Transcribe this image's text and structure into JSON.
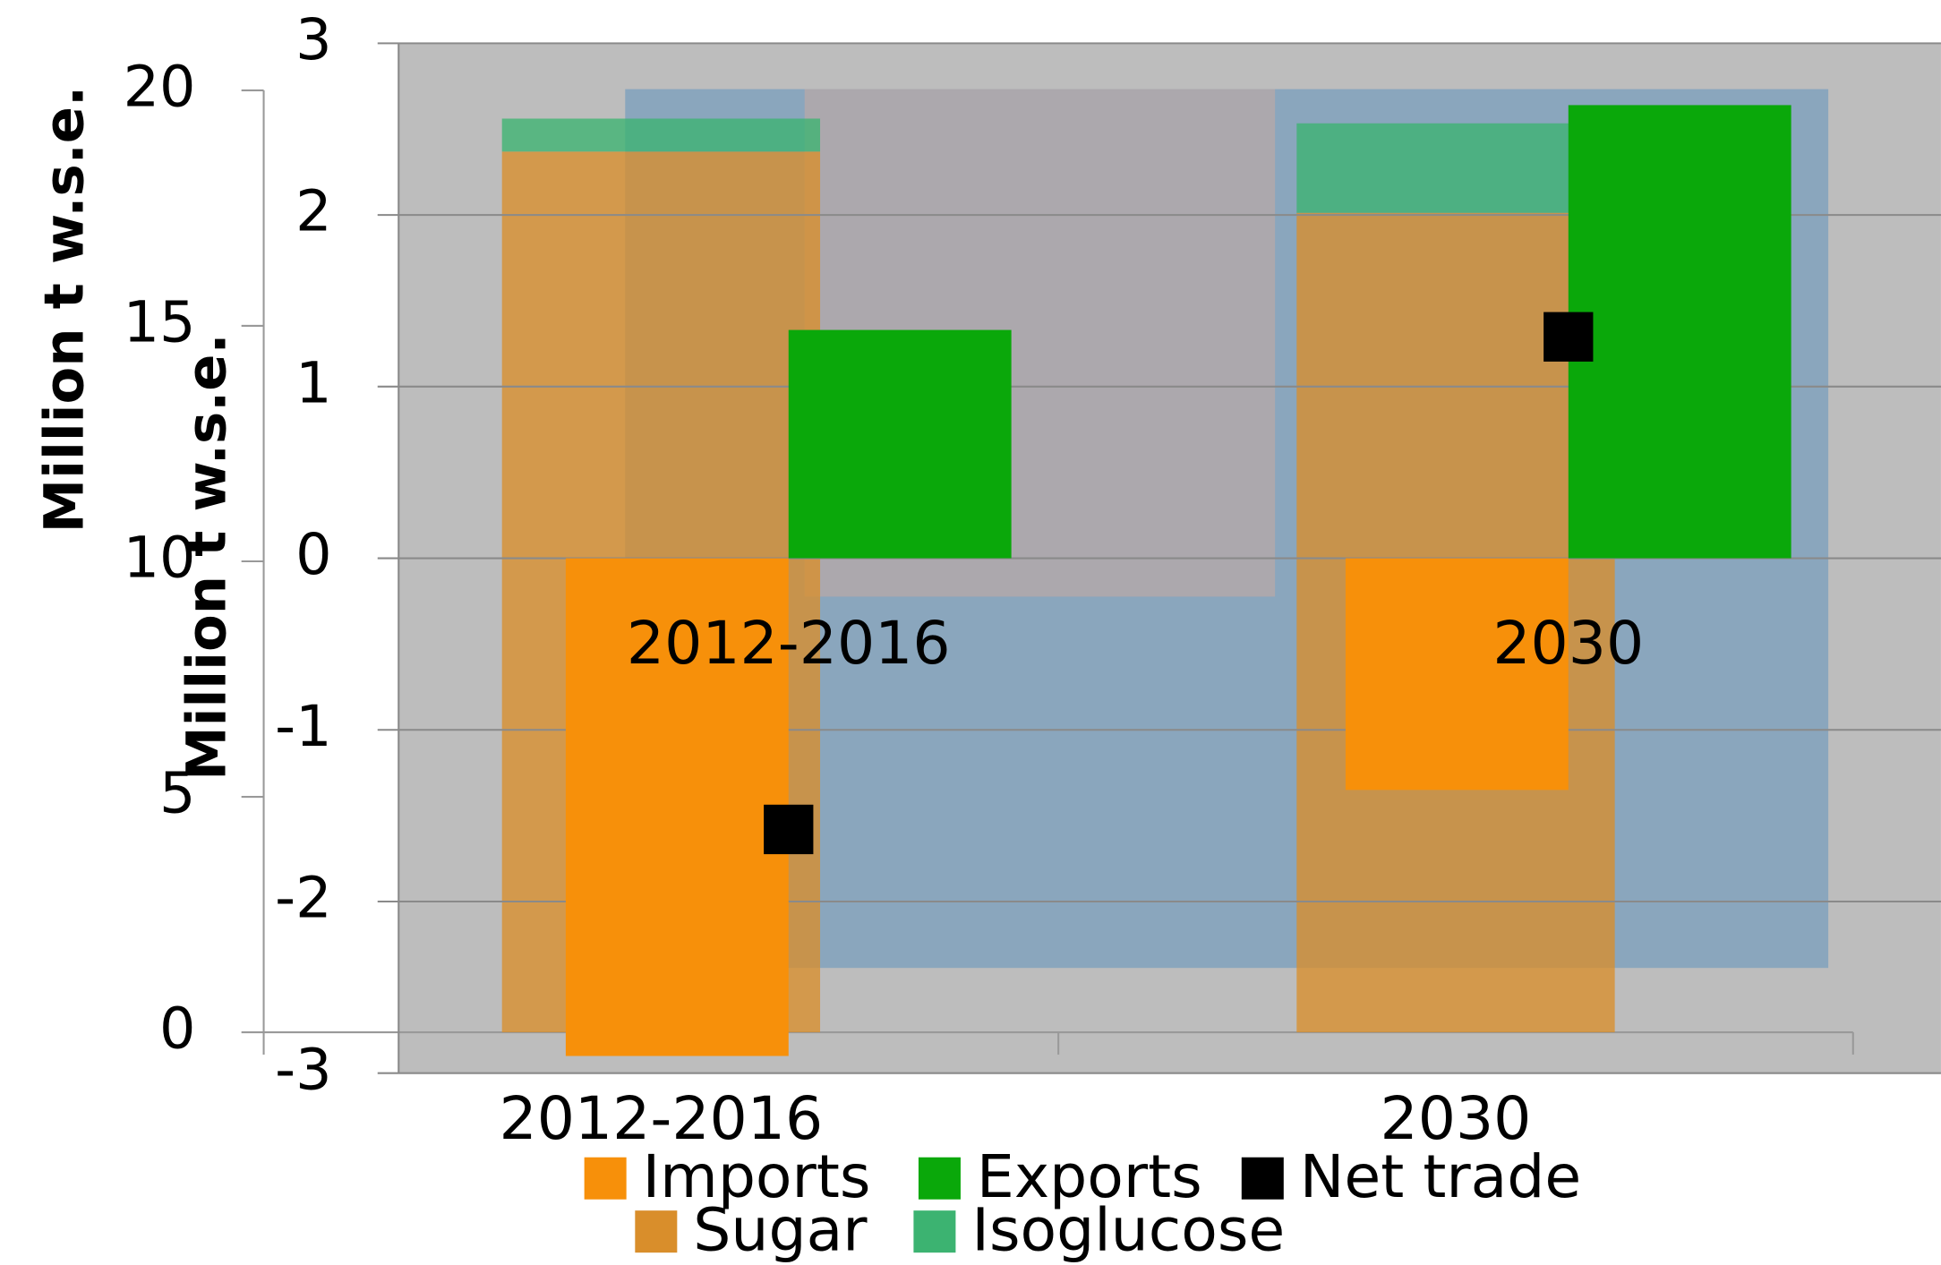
{
  "chart_data": [
    {
      "type": "bar",
      "stacked": true,
      "ylabel": "Million t w.s.e.",
      "categories": [
        "2012-2016",
        "2030"
      ],
      "series": [
        {
          "name": "Sugar",
          "color": "#d98e2b",
          "values": [
            18.7,
            17.4
          ]
        },
        {
          "name": "Isoglucose",
          "color": "#3cb371",
          "values": [
            0.7,
            1.9
          ]
        }
      ],
      "ylim": [
        0,
        20
      ],
      "yticks": [
        0,
        5,
        10,
        15,
        20
      ]
    },
    {
      "type": "bar",
      "stacked": false,
      "ylabel": "Million t w.s.e.",
      "categories": [
        "2012-2016",
        "2030"
      ],
      "series": [
        {
          "name": "Imports",
          "color": "#f7900a",
          "values": [
            -2.9,
            -1.35
          ]
        },
        {
          "name": "Exports",
          "color": "#0aa80a",
          "values": [
            1.33,
            2.64
          ]
        },
        {
          "name": "Net trade",
          "color": "#000000",
          "type": "marker",
          "values": [
            -1.58,
            1.29
          ]
        }
      ],
      "ylim": [
        -3,
        3
      ],
      "yticks": [
        -3,
        -2,
        -1,
        0,
        1,
        2,
        3
      ],
      "grid": true
    }
  ]
}
